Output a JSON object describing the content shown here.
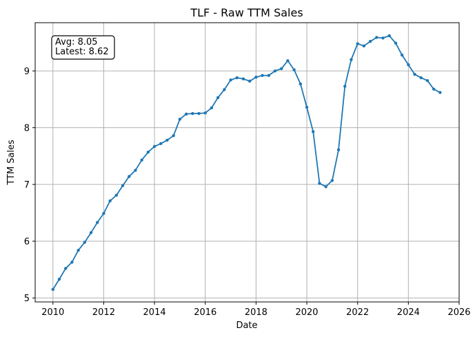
{
  "chart_data": {
    "type": "line",
    "title": "TLF - Raw TTM Sales",
    "xlabel": "Date",
    "ylabel": "TTM Sales",
    "xlim": [
      2009.3,
      2026.0
    ],
    "ylim": [
      4.93,
      9.85
    ],
    "xticks": [
      2010,
      2012,
      2014,
      2016,
      2018,
      2020,
      2022,
      2024,
      2026
    ],
    "yticks": [
      5,
      6,
      7,
      8,
      9
    ],
    "grid": true,
    "line_color": "#1f77b4",
    "annotation": {
      "lines": [
        "Avg: 8.05",
        "Latest: 8.62"
      ],
      "placement": "top-left"
    },
    "series": [
      {
        "x": [
          2010.0,
          2010.25,
          2010.5,
          2010.75,
          2011.0,
          2011.25,
          2011.5,
          2011.75,
          2012.0,
          2012.25,
          2012.5,
          2012.75,
          2013.0,
          2013.25,
          2013.5,
          2013.75,
          2014.0,
          2014.25,
          2014.5,
          2014.75,
          2015.0,
          2015.25,
          2015.5,
          2015.75,
          2016.0,
          2016.25,
          2016.5,
          2016.75,
          2017.0,
          2017.25,
          2017.5,
          2017.75,
          2018.0,
          2018.25,
          2018.5,
          2018.75,
          2019.0,
          2019.25,
          2019.5,
          2019.75,
          2020.0,
          2020.25,
          2020.5,
          2020.75,
          2021.0,
          2021.25,
          2021.5,
          2021.75,
          2022.0,
          2022.25,
          2022.5,
          2022.75,
          2023.0,
          2023.25,
          2023.5,
          2023.75,
          2024.0,
          2024.25,
          2024.5,
          2024.75,
          2025.0,
          2025.25
        ],
        "y": [
          5.15,
          5.33,
          5.52,
          5.63,
          5.84,
          5.98,
          6.15,
          6.33,
          6.49,
          6.71,
          6.81,
          6.98,
          7.14,
          7.25,
          7.43,
          7.57,
          7.67,
          7.72,
          7.78,
          7.86,
          8.15,
          8.24,
          8.25,
          8.25,
          8.26,
          8.35,
          8.53,
          8.67,
          8.84,
          8.88,
          8.86,
          8.82,
          8.89,
          8.92,
          8.92,
          9.0,
          9.04,
          9.18,
          9.02,
          8.77,
          8.36,
          7.93,
          7.02,
          6.96,
          7.07,
          7.61,
          8.73,
          9.2,
          9.48,
          9.44,
          9.52,
          9.59,
          9.58,
          9.62,
          9.49,
          9.28,
          9.11,
          8.94,
          8.88,
          8.83,
          8.68,
          8.62
        ]
      }
    ]
  }
}
